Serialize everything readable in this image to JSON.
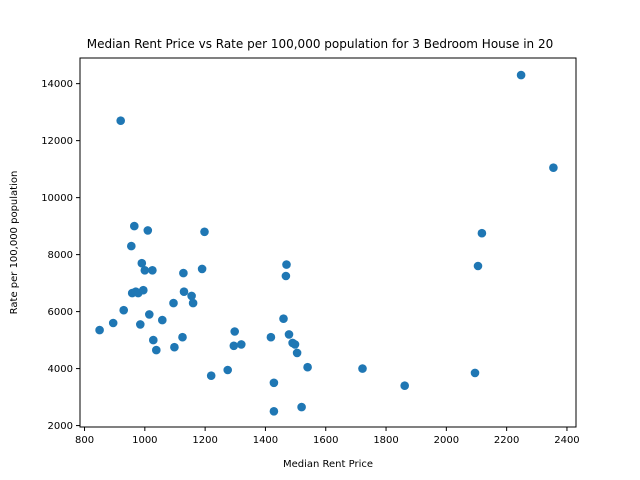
{
  "chart_data": {
    "type": "scatter",
    "title": "Median Rent Price vs Rate per 100,000 population for 3 Bedroom House in 20",
    "xlabel": "Median Rent Price",
    "ylabel": "Rate per 100,000 population",
    "xlim": [
      785,
      2430
    ],
    "ylim": [
      1950,
      14900
    ],
    "xticks": [
      800,
      1000,
      1200,
      1400,
      1600,
      1800,
      2000,
      2200,
      2400
    ],
    "yticks": [
      2000,
      4000,
      6000,
      8000,
      10000,
      12000,
      14000
    ],
    "grid": false,
    "marker_color": "#1f77b4",
    "points": [
      {
        "x": 850,
        "y": 5350
      },
      {
        "x": 895,
        "y": 5600
      },
      {
        "x": 920,
        "y": 12700
      },
      {
        "x": 930,
        "y": 6050
      },
      {
        "x": 955,
        "y": 8300
      },
      {
        "x": 958,
        "y": 6650
      },
      {
        "x": 965,
        "y": 9000
      },
      {
        "x": 970,
        "y": 6700
      },
      {
        "x": 978,
        "y": 6650
      },
      {
        "x": 985,
        "y": 5550
      },
      {
        "x": 990,
        "y": 7700
      },
      {
        "x": 995,
        "y": 6750
      },
      {
        "x": 1000,
        "y": 7450
      },
      {
        "x": 1010,
        "y": 8850
      },
      {
        "x": 1015,
        "y": 5900
      },
      {
        "x": 1025,
        "y": 7450
      },
      {
        "x": 1028,
        "y": 5000
      },
      {
        "x": 1038,
        "y": 4650
      },
      {
        "x": 1058,
        "y": 5700
      },
      {
        "x": 1095,
        "y": 6300
      },
      {
        "x": 1098,
        "y": 4750
      },
      {
        "x": 1125,
        "y": 5100
      },
      {
        "x": 1128,
        "y": 7350
      },
      {
        "x": 1130,
        "y": 6700
      },
      {
        "x": 1155,
        "y": 6550
      },
      {
        "x": 1160,
        "y": 6300
      },
      {
        "x": 1190,
        "y": 7500
      },
      {
        "x": 1198,
        "y": 8800
      },
      {
        "x": 1220,
        "y": 3750
      },
      {
        "x": 1275,
        "y": 3950
      },
      {
        "x": 1295,
        "y": 4800
      },
      {
        "x": 1298,
        "y": 5300
      },
      {
        "x": 1320,
        "y": 4850
      },
      {
        "x": 1418,
        "y": 5100
      },
      {
        "x": 1428,
        "y": 3500
      },
      {
        "x": 1428,
        "y": 2500
      },
      {
        "x": 1460,
        "y": 5750
      },
      {
        "x": 1468,
        "y": 7250
      },
      {
        "x": 1470,
        "y": 7650
      },
      {
        "x": 1478,
        "y": 5200
      },
      {
        "x": 1490,
        "y": 4900
      },
      {
        "x": 1498,
        "y": 4850
      },
      {
        "x": 1505,
        "y": 4550
      },
      {
        "x": 1520,
        "y": 2650
      },
      {
        "x": 1540,
        "y": 4050
      },
      {
        "x": 1722,
        "y": 4000
      },
      {
        "x": 1862,
        "y": 3400
      },
      {
        "x": 2095,
        "y": 3850
      },
      {
        "x": 2105,
        "y": 7600
      },
      {
        "x": 2118,
        "y": 8750
      },
      {
        "x": 2248,
        "y": 14300
      },
      {
        "x": 2355,
        "y": 11050
      }
    ]
  }
}
